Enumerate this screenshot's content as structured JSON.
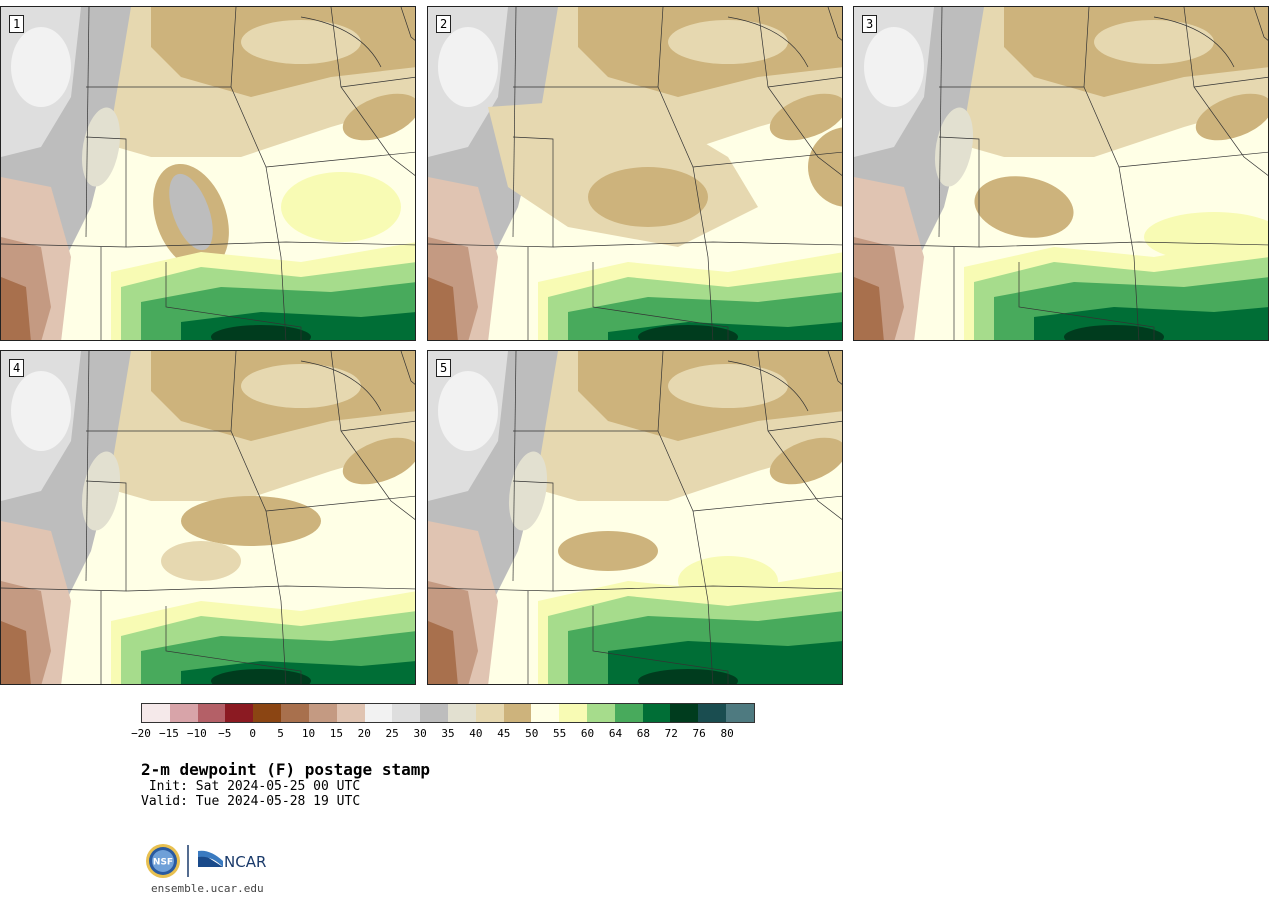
{
  "panels": [
    {
      "label": "1",
      "variant": 0
    },
    {
      "label": "2",
      "variant": 1
    },
    {
      "label": "3",
      "variant": 2
    },
    {
      "label": "4",
      "variant": 3
    },
    {
      "label": "5",
      "variant": 4
    }
  ],
  "colorbar": {
    "colors": [
      "#f5e9ea",
      "#d8a4a9",
      "#b46067",
      "#8b1a22",
      "#8b4513",
      "#a8704d",
      "#c49a82",
      "#e0c4b2",
      "#f2f2f2",
      "#dedede",
      "#bdbdbd",
      "#e2e0d0",
      "#e6d8b0",
      "#cdb37c",
      "#ffffe6",
      "#f8fbb4",
      "#a6dc8c",
      "#48aa5c",
      "#006e36",
      "#003c1e",
      "#1a4d50",
      "#4e7a80"
    ],
    "ticks": [
      "−20",
      "−15",
      "−10",
      "−5",
      "0",
      "5",
      "10",
      "15",
      "20",
      "25",
      "30",
      "35",
      "40",
      "45",
      "50",
      "55",
      "60",
      "64",
      "68",
      "72",
      "76",
      "80"
    ]
  },
  "title": "2-m dewpoint (F) postage stamp",
  "init_text": " Init: Sat 2024-05-25 00 UTC",
  "valid_text": "Valid: Tue 2024-05-28 19 UTC",
  "logo": {
    "nsf": "NSF",
    "ncar": "NCAR"
  },
  "website": "ensemble.ucar.edu"
}
